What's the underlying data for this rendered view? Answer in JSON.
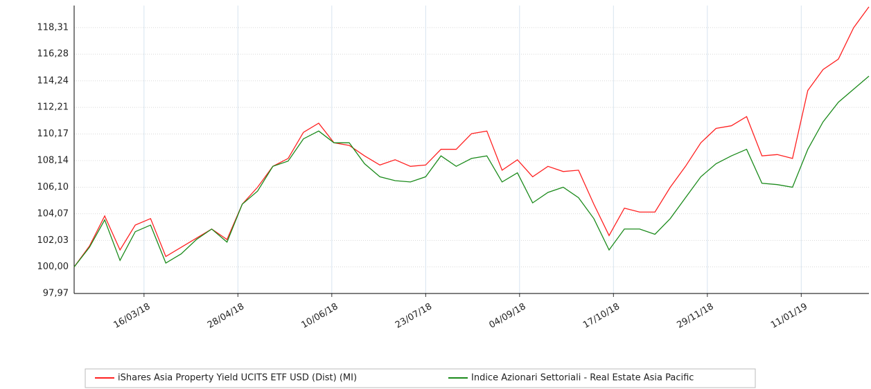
{
  "chart_data": {
    "type": "line",
    "x": [
      "12/02/18",
      "19/02/18",
      "26/02/18",
      "05/03/18",
      "12/03/18",
      "19/03/18",
      "26/03/18",
      "02/04/18",
      "09/04/18",
      "16/04/18",
      "23/04/18",
      "30/04/18",
      "07/05/18",
      "14/05/18",
      "21/05/18",
      "28/05/18",
      "04/06/18",
      "11/06/18",
      "18/06/18",
      "25/06/18",
      "02/07/18",
      "09/07/18",
      "16/07/18",
      "23/07/18",
      "30/07/18",
      "06/08/18",
      "13/08/18",
      "20/08/18",
      "27/08/18",
      "03/09/18",
      "10/09/18",
      "17/09/18",
      "24/09/18",
      "01/10/18",
      "08/10/18",
      "15/10/18",
      "22/10/18",
      "29/10/18",
      "05/11/18",
      "12/11/18",
      "19/11/18",
      "26/11/18",
      "03/12/18",
      "10/12/18",
      "17/12/18",
      "24/12/18",
      "31/12/18",
      "07/01/19",
      "14/01/19",
      "21/01/19",
      "28/01/19",
      "04/02/19",
      "11/02/19"
    ],
    "series": [
      {
        "name": "iShares Asia Property Yield UCITS ETF USD (Dist) (MI)",
        "color": "#ff2020",
        "values": [
          100.0,
          101.6,
          103.9,
          101.3,
          103.2,
          103.7,
          100.8,
          101.5,
          102.2,
          102.9,
          102.1,
          104.8,
          106.1,
          107.7,
          108.3,
          110.3,
          111.0,
          109.5,
          109.3,
          108.5,
          107.8,
          108.2,
          107.7,
          107.8,
          109.0,
          109.0,
          110.2,
          110.4,
          107.4,
          108.2,
          106.9,
          107.7,
          107.3,
          107.4,
          104.8,
          102.4,
          104.5,
          104.2,
          104.2,
          106.1,
          107.7,
          109.5,
          110.6,
          110.8,
          111.5,
          108.5,
          108.6,
          108.3,
          113.5,
          115.1,
          115.9,
          118.3,
          119.9
        ]
      },
      {
        "name": "Indice Azionari Settoriali - Real Estate Asia Pacific",
        "color": "#1a8a1a",
        "values": [
          100.0,
          101.5,
          103.6,
          100.5,
          102.7,
          103.2,
          100.3,
          101.0,
          102.1,
          102.9,
          101.9,
          104.8,
          105.8,
          107.7,
          108.1,
          109.8,
          110.4,
          109.5,
          109.5,
          107.9,
          106.9,
          106.6,
          106.5,
          106.9,
          108.5,
          107.7,
          108.3,
          108.5,
          106.5,
          107.2,
          104.9,
          105.7,
          106.1,
          105.3,
          103.7,
          101.3,
          102.9,
          102.9,
          102.5,
          103.7,
          105.3,
          106.9,
          107.9,
          108.5,
          109.0,
          106.4,
          106.3,
          106.1,
          109.0,
          111.1,
          112.6,
          113.6,
          114.6
        ]
      }
    ],
    "xlim": [
      "12/02/18",
      "11/02/19"
    ],
    "xticks": [
      "16/03/18",
      "28/04/18",
      "10/06/18",
      "23/07/18",
      "04/09/18",
      "17/10/18",
      "29/11/18",
      "11/01/19"
    ],
    "ylim": [
      97.97,
      120.0
    ],
    "yticks": [
      {
        "value": 97.97,
        "label": "97,97"
      },
      {
        "value": 100.0,
        "label": "100,00"
      },
      {
        "value": 102.03,
        "label": "102,03"
      },
      {
        "value": 104.07,
        "label": "104,07"
      },
      {
        "value": 106.1,
        "label": "106,10"
      },
      {
        "value": 108.14,
        "label": "108,14"
      },
      {
        "value": 110.17,
        "label": "110,17"
      },
      {
        "value": 112.21,
        "label": "112,21"
      },
      {
        "value": 114.24,
        "label": "114,24"
      },
      {
        "value": 116.28,
        "label": "116,28"
      },
      {
        "value": 118.31,
        "label": "118,31"
      }
    ],
    "grid": true
  }
}
